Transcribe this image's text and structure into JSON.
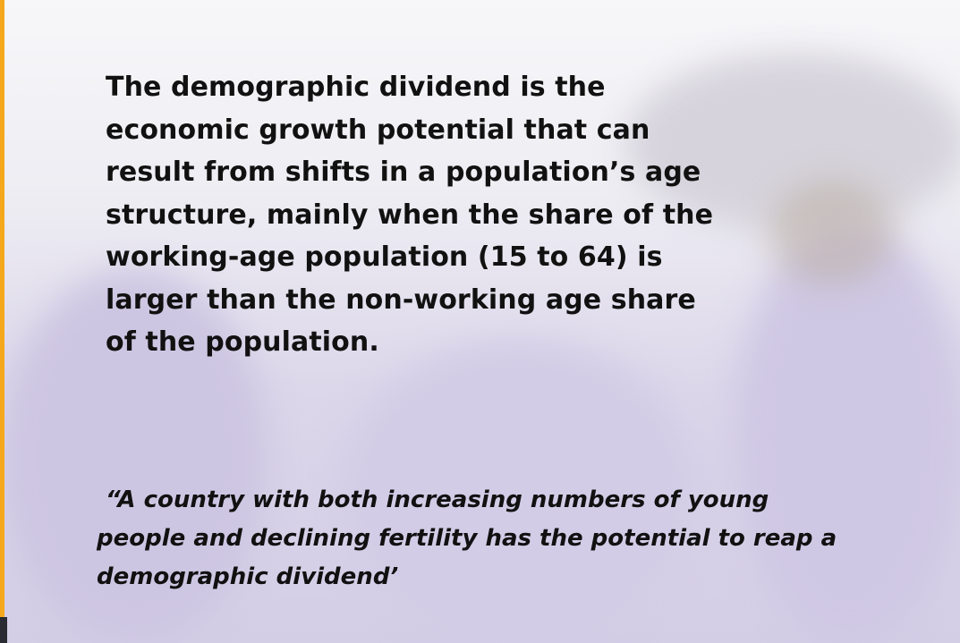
{
  "main": {
    "lines": [
      "The demographic dividend is the",
      "economic growth potential that can",
      "result from shifts in a population’s age",
      "structure, mainly when the share of the",
      "working-age population (15 to 64) is",
      "larger than the non-working age share",
      "of the population."
    ]
  },
  "quote": {
    "lines": [
      "“A country with both increasing numbers of young",
      "people and declining fertility has the potential to reap a",
      "demographic dividend’"
    ]
  }
}
